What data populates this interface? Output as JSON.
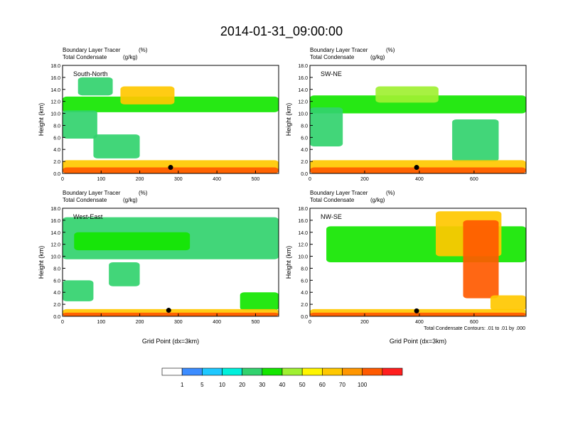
{
  "title": "2014-01-31_09:00:00",
  "chart_data": [
    {
      "type": "heatmap",
      "panel": "South-North",
      "subtitle_line1": "Boundary Layer Tracer",
      "subtitle_line2": "Total Condensate",
      "unit1": "(%)",
      "unit2": "(g/kg)",
      "ylabel": "Height (km)",
      "xlabel": "",
      "xlim": [
        0,
        560
      ],
      "ylim": [
        0,
        18
      ],
      "xticks": [
        0,
        100,
        200,
        300,
        400,
        500
      ],
      "yticks": [
        "0.0",
        "2.0",
        "4.0",
        "6.0",
        "8.0",
        "10.0",
        "12.0",
        "14.0",
        "16.0",
        "18.0"
      ],
      "marker": {
        "x": 280,
        "y": 1.0
      },
      "bands": [
        {
          "x0": 0,
          "x1": 560,
          "y0": 10.2,
          "y1": 12.8,
          "value": 20
        },
        {
          "x0": 150,
          "x1": 290,
          "y0": 11.5,
          "y1": 14.5,
          "value": 50
        },
        {
          "x0": 40,
          "x1": 130,
          "y0": 13,
          "y1": 16,
          "value": 10
        },
        {
          "x0": 0,
          "x1": 90,
          "y0": 5.8,
          "y1": 10.5,
          "value": 10
        },
        {
          "x0": 80,
          "x1": 200,
          "y0": 2.5,
          "y1": 6.5,
          "value": 10
        },
        {
          "x0": 0,
          "x1": 560,
          "y0": 0,
          "y1": 2.2,
          "value": 50
        },
        {
          "x0": 0,
          "x1": 560,
          "y0": 0,
          "y1": 1.0,
          "value": 70
        }
      ]
    },
    {
      "type": "heatmap",
      "panel": "SW-NE",
      "subtitle_line1": "Boundary Layer Tracer",
      "subtitle_line2": "Total Condensate",
      "unit1": "(%)",
      "unit2": "(g/kg)",
      "ylabel": "Height (km)",
      "xlabel": "",
      "xlim": [
        0,
        790
      ],
      "ylim": [
        0,
        18
      ],
      "xticks": [
        0,
        200,
        400,
        600
      ],
      "yticks": [
        "0.0",
        "2.0",
        "4.0",
        "6.0",
        "8.0",
        "10.0",
        "12.0",
        "14.0",
        "16.0",
        "18.0"
      ],
      "marker": {
        "x": 390,
        "y": 1.0
      },
      "bands": [
        {
          "x0": 0,
          "x1": 790,
          "y0": 10.0,
          "y1": 13.0,
          "value": 20
        },
        {
          "x0": 240,
          "x1": 470,
          "y0": 11.8,
          "y1": 14.5,
          "value": 30
        },
        {
          "x0": 0,
          "x1": 120,
          "y0": 4.5,
          "y1": 11,
          "value": 10
        },
        {
          "x0": 520,
          "x1": 690,
          "y0": 2.0,
          "y1": 9,
          "value": 10
        },
        {
          "x0": 0,
          "x1": 790,
          "y0": 0,
          "y1": 2.2,
          "value": 50
        },
        {
          "x0": 0,
          "x1": 790,
          "y0": 0,
          "y1": 1.0,
          "value": 70
        }
      ]
    },
    {
      "type": "heatmap",
      "panel": "West-East",
      "subtitle_line1": "Boundary Layer Tracer",
      "subtitle_line2": "Total Condensate",
      "unit1": "(%)",
      "unit2": "(g/kg)",
      "ylabel": "Height (km)",
      "xlabel": "Grid Point (dx=3km)",
      "xlim": [
        0,
        560
      ],
      "ylim": [
        0,
        18
      ],
      "xticks": [
        0,
        100,
        200,
        300,
        400,
        500
      ],
      "yticks": [
        "0.0",
        "2.0",
        "4.0",
        "6.0",
        "8.0",
        "10.0",
        "12.0",
        "14.0",
        "16.0",
        "18.0"
      ],
      "marker": {
        "x": 275,
        "y": 1.0
      },
      "bands": [
        {
          "x0": 0,
          "x1": 560,
          "y0": 9.5,
          "y1": 16.5,
          "value": 10
        },
        {
          "x0": 30,
          "x1": 330,
          "y0": 11,
          "y1": 14,
          "value": 20
        },
        {
          "x0": 120,
          "x1": 200,
          "y0": 5,
          "y1": 9,
          "value": 10
        },
        {
          "x0": 0,
          "x1": 80,
          "y0": 2.5,
          "y1": 6,
          "value": 10
        },
        {
          "x0": 460,
          "x1": 560,
          "y0": 1,
          "y1": 4,
          "value": 20
        },
        {
          "x0": 0,
          "x1": 560,
          "y0": 0,
          "y1": 1.2,
          "value": 50
        },
        {
          "x0": 0,
          "x1": 560,
          "y0": 0,
          "y1": 0.6,
          "value": 70
        }
      ]
    },
    {
      "type": "heatmap",
      "panel": "NW-SE",
      "subtitle_line1": "Boundary Layer Tracer",
      "subtitle_line2": "Total Condensate",
      "unit1": "(%)",
      "unit2": "(g/kg)",
      "ylabel": "Height (km)",
      "xlabel": "Grid Point (dx=3km)",
      "xlim": [
        0,
        790
      ],
      "ylim": [
        0,
        18
      ],
      "xticks": [
        0,
        200,
        400,
        600
      ],
      "yticks": [
        "0.0",
        "2.0",
        "4.0",
        "6.0",
        "8.0",
        "10.0",
        "12.0",
        "14.0",
        "16.0",
        "18.0"
      ],
      "marker": {
        "x": 390,
        "y": 0.9
      },
      "bands": [
        {
          "x0": 60,
          "x1": 790,
          "y0": 9,
          "y1": 15,
          "value": 20
        },
        {
          "x0": 460,
          "x1": 700,
          "y0": 10,
          "y1": 17.5,
          "value": 50
        },
        {
          "x0": 560,
          "x1": 690,
          "y0": 3,
          "y1": 16,
          "value": 70
        },
        {
          "x0": 660,
          "x1": 790,
          "y0": 1,
          "y1": 3.5,
          "value": 50
        },
        {
          "x0": 0,
          "x1": 790,
          "y0": 0,
          "y1": 1.2,
          "value": 50
        },
        {
          "x0": 0,
          "x1": 790,
          "y0": 0,
          "y1": 0.6,
          "value": 70
        }
      ],
      "contour_note": "Total Condensate Contours: .01 to .01 by .000"
    }
  ],
  "legend": {
    "levels": [
      "1",
      "5",
      "10",
      "20",
      "30",
      "40",
      "50",
      "60",
      "70",
      "100"
    ],
    "colors": [
      "#ffffff",
      "#3c8cff",
      "#1ec8ff",
      "#00f0dc",
      "#32d26e",
      "#14e600",
      "#a0f032",
      "#fff500",
      "#ffc800",
      "#ff9600",
      "#ff5a00",
      "#ff1e1e"
    ]
  }
}
